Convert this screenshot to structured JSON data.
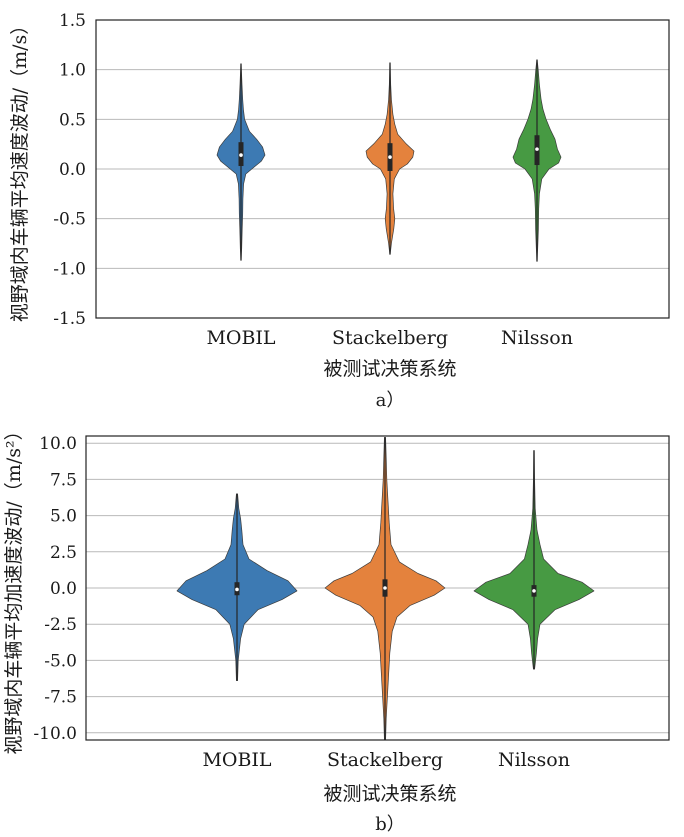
{
  "figure": {
    "panels": [
      {
        "id": "a",
        "caption": "a）",
        "ylabel": "视野域内车辆平均速度波动/（m/s）",
        "xlabel": "被测试决策系统"
      },
      {
        "id": "b",
        "caption": "b）",
        "ylabel": "视野域内车辆平均加速度波动/（m/s²）",
        "xlabel": "被测试决策系统"
      }
    ]
  },
  "chart_data": [
    {
      "type": "violin",
      "title": "",
      "xlabel": "被测试决策系统",
      "ylabel": "视野域内车辆平均速度波动/（m/s）",
      "ylim": [
        -1.5,
        1.5
      ],
      "yticks": [
        -1.5,
        -1.0,
        -0.5,
        0.0,
        0.5,
        1.0,
        1.5
      ],
      "ytick_labels": [
        "-1.5",
        "-1.0",
        "-0.5",
        "0.0",
        "0.5",
        "1.0",
        "1.5"
      ],
      "grid": "horizontal",
      "categories": [
        "MOBIL",
        "Stackelberg",
        "Nilsson"
      ],
      "series": [
        {
          "category": "MOBIL",
          "color": "#3d7ab3",
          "min": -0.92,
          "max": 1.06,
          "q1": 0.03,
          "median": 0.14,
          "q3": 0.27,
          "profile": [
            [
              -0.92,
              0.01
            ],
            [
              -0.8,
              0.03
            ],
            [
              -0.6,
              0.05
            ],
            [
              -0.45,
              0.07
            ],
            [
              -0.3,
              0.08
            ],
            [
              -0.15,
              0.11
            ],
            [
              -0.05,
              0.2
            ],
            [
              0.02,
              0.55
            ],
            [
              0.08,
              0.85
            ],
            [
              0.14,
              1.0
            ],
            [
              0.22,
              0.9
            ],
            [
              0.3,
              0.65
            ],
            [
              0.38,
              0.35
            ],
            [
              0.5,
              0.15
            ],
            [
              0.6,
              0.1
            ],
            [
              0.7,
              0.07
            ],
            [
              0.85,
              0.04
            ],
            [
              1.06,
              0.01
            ]
          ]
        },
        {
          "category": "Stackelberg",
          "color": "#e4823d",
          "min": -0.86,
          "max": 1.07,
          "q1": -0.02,
          "median": 0.12,
          "q3": 0.26,
          "profile": [
            [
              -0.86,
              0.01
            ],
            [
              -0.75,
              0.06
            ],
            [
              -0.6,
              0.16
            ],
            [
              -0.5,
              0.2
            ],
            [
              -0.4,
              0.15
            ],
            [
              -0.25,
              0.12
            ],
            [
              -0.1,
              0.18
            ],
            [
              0.0,
              0.4
            ],
            [
              0.05,
              0.72
            ],
            [
              0.12,
              0.95
            ],
            [
              0.18,
              1.0
            ],
            [
              0.26,
              0.65
            ],
            [
              0.35,
              0.32
            ],
            [
              0.45,
              0.2
            ],
            [
              0.55,
              0.12
            ],
            [
              0.7,
              0.06
            ],
            [
              0.85,
              0.03
            ],
            [
              1.07,
              0.01
            ]
          ]
        },
        {
          "category": "Nilsson",
          "color": "#479a43",
          "min": -0.93,
          "max": 1.1,
          "q1": 0.04,
          "median": 0.2,
          "q3": 0.34,
          "profile": [
            [
              -0.93,
              0.01
            ],
            [
              -0.8,
              0.03
            ],
            [
              -0.6,
              0.06
            ],
            [
              -0.4,
              0.07
            ],
            [
              -0.25,
              0.1
            ],
            [
              -0.1,
              0.2
            ],
            [
              0.0,
              0.5
            ],
            [
              0.06,
              0.9
            ],
            [
              0.12,
              1.0
            ],
            [
              0.2,
              0.85
            ],
            [
              0.3,
              0.75
            ],
            [
              0.4,
              0.55
            ],
            [
              0.5,
              0.38
            ],
            [
              0.6,
              0.25
            ],
            [
              0.7,
              0.17
            ],
            [
              0.85,
              0.1
            ],
            [
              1.0,
              0.05
            ],
            [
              1.1,
              0.01
            ]
          ]
        }
      ]
    },
    {
      "type": "violin",
      "title": "",
      "xlabel": "被测试决策系统",
      "ylabel": "视野域内车辆平均加速度波动/（m/s²）",
      "ylim": [
        -10.5,
        10.5
      ],
      "yticks": [
        -10.0,
        -7.5,
        -5.0,
        -2.5,
        0.0,
        2.5,
        5.0,
        7.5,
        10.0
      ],
      "ytick_labels": [
        "-10.0",
        "-7.5",
        "-5.0",
        "-2.5",
        "0.0",
        "2.5",
        "5.0",
        "7.5",
        "10.0"
      ],
      "grid": "horizontal",
      "categories": [
        "MOBIL",
        "Stackelberg",
        "Nilsson"
      ],
      "series": [
        {
          "category": "MOBIL",
          "color": "#3d7ab3",
          "min": -6.4,
          "max": 6.5,
          "q1": -0.5,
          "median": -0.1,
          "q3": 0.4,
          "profile": [
            [
              -6.4,
              0.01
            ],
            [
              -5.0,
              0.02
            ],
            [
              -3.5,
              0.06
            ],
            [
              -2.5,
              0.12
            ],
            [
              -1.5,
              0.35
            ],
            [
              -0.8,
              0.75
            ],
            [
              -0.2,
              1.0
            ],
            [
              0.5,
              0.85
            ],
            [
              1.2,
              0.5
            ],
            [
              2.0,
              0.2
            ],
            [
              3.0,
              0.1
            ],
            [
              4.0,
              0.08
            ],
            [
              4.8,
              0.06
            ],
            [
              5.5,
              0.03
            ],
            [
              6.5,
              0.01
            ]
          ]
        },
        {
          "category": "Stackelberg",
          "color": "#e4823d",
          "min": -10.5,
          "max": 10.4,
          "q1": -0.6,
          "median": 0.0,
          "q3": 0.6,
          "profile": [
            [
              -10.5,
              0.01
            ],
            [
              -9.0,
              0.02
            ],
            [
              -7.5,
              0.04
            ],
            [
              -6.0,
              0.06
            ],
            [
              -4.5,
              0.08
            ],
            [
              -3.0,
              0.12
            ],
            [
              -2.0,
              0.2
            ],
            [
              -1.2,
              0.42
            ],
            [
              -0.5,
              0.82
            ],
            [
              0.0,
              1.0
            ],
            [
              0.5,
              0.85
            ],
            [
              1.0,
              0.55
            ],
            [
              1.8,
              0.24
            ],
            [
              3.0,
              0.1
            ],
            [
              4.5,
              0.07
            ],
            [
              6.0,
              0.05
            ],
            [
              7.5,
              0.03
            ],
            [
              9.0,
              0.02
            ],
            [
              10.4,
              0.01
            ]
          ]
        },
        {
          "category": "Nilsson",
          "color": "#479a43",
          "min": -5.6,
          "max": 9.5,
          "q1": -0.6,
          "median": -0.2,
          "q3": 0.2,
          "profile": [
            [
              -5.6,
              0.01
            ],
            [
              -4.5,
              0.04
            ],
            [
              -3.5,
              0.06
            ],
            [
              -2.5,
              0.1
            ],
            [
              -1.5,
              0.35
            ],
            [
              -0.8,
              0.75
            ],
            [
              -0.2,
              1.0
            ],
            [
              0.4,
              0.8
            ],
            [
              1.0,
              0.4
            ],
            [
              2.0,
              0.16
            ],
            [
              3.0,
              0.1
            ],
            [
              4.0,
              0.05
            ],
            [
              5.5,
              0.02
            ],
            [
              7.5,
              0.01
            ],
            [
              9.5,
              0.005
            ]
          ]
        }
      ]
    }
  ]
}
